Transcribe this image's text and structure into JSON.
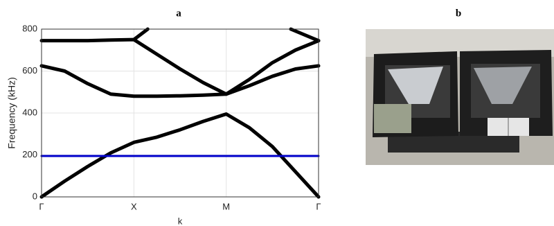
{
  "chart_data": {
    "type": "line",
    "title": "a",
    "x_label": "k",
    "y_label": "Frequency (kHz)",
    "xlim": [
      0,
      3
    ],
    "xticks": [
      {
        "value": 0,
        "label": "Γ"
      },
      {
        "value": 1,
        "label": "X"
      },
      {
        "value": 2,
        "label": "M"
      },
      {
        "value": 3,
        "label": "Γ"
      }
    ],
    "ylim": [
      0,
      800
    ],
    "yticks": [
      0,
      200,
      400,
      600,
      800
    ],
    "grid": true,
    "series": [
      {
        "color": "#000000",
        "x": [
          0,
          0.25,
          0.5,
          0.75,
          1,
          1.25,
          1.5,
          1.75,
          2,
          2.25,
          2.5,
          2.75,
          3
        ],
        "values": [
          0,
          75,
          145,
          210,
          260,
          285,
          320,
          360,
          395,
          330,
          240,
          120,
          0
        ]
      },
      {
        "color": "#000000",
        "x": [
          0,
          0.25,
          0.5,
          0.75,
          1,
          1.25,
          1.5,
          1.75,
          2,
          2.25,
          2.5,
          2.75,
          3
        ],
        "values": [
          625,
          600,
          540,
          490,
          480,
          480,
          482,
          485,
          490,
          530,
          575,
          610,
          625
        ]
      },
      {
        "color": "#000000",
        "x": [
          0,
          0.25,
          0.5,
          0.75,
          1,
          1.25,
          1.5,
          1.75,
          2,
          2.25,
          2.5,
          2.75,
          3
        ],
        "values": [
          745,
          745,
          745,
          748,
          750,
          680,
          610,
          545,
          490,
          560,
          640,
          700,
          745
        ]
      },
      {
        "color": "#000000",
        "x": [
          1,
          1.15,
          2,
          2.7,
          3
        ],
        "values": [
          750,
          800,
          null,
          800,
          745
        ]
      },
      {
        "color": "#0000cc",
        "x": [
          0,
          3
        ],
        "values": [
          195,
          195
        ]
      }
    ]
  },
  "photo": {
    "label": "b"
  }
}
